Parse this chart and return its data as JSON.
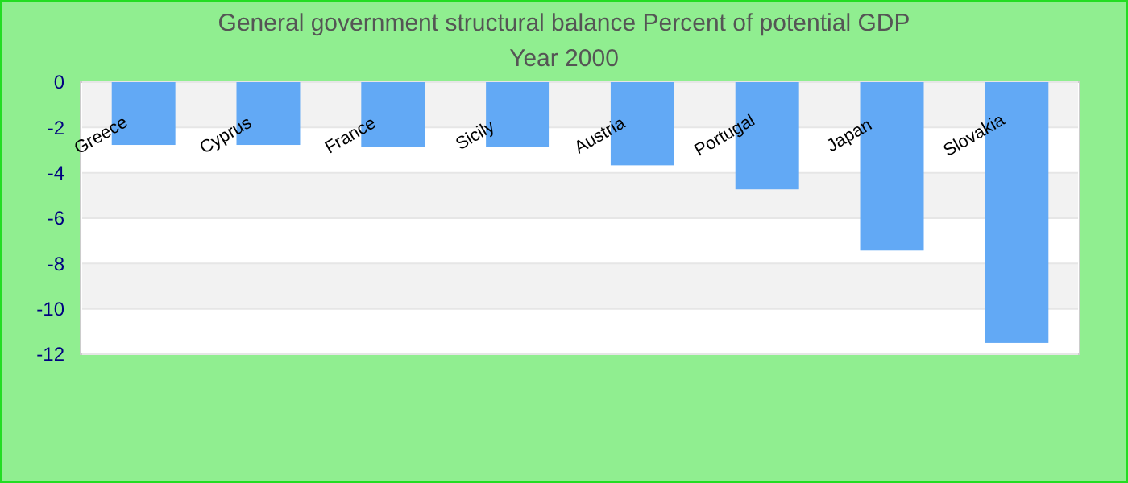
{
  "chart_data": {
    "type": "bar",
    "title": "General government structural balance  Percent of potential GDP",
    "subtitle": "Year 2000",
    "categories": [
      "Greece",
      "Cyprus",
      "France",
      "Sicily",
      "Austria",
      "Portugal",
      "Japan",
      "Slovakia"
    ],
    "values": [
      -2.77,
      -2.77,
      -2.84,
      -2.84,
      -3.67,
      -4.73,
      -7.43,
      -11.5
    ],
    "color": "#62a9f5",
    "ylim": [
      -12,
      0
    ],
    "yticks": [
      0,
      -2,
      -4,
      -6,
      -8,
      -10,
      -12
    ],
    "grid": "y"
  }
}
